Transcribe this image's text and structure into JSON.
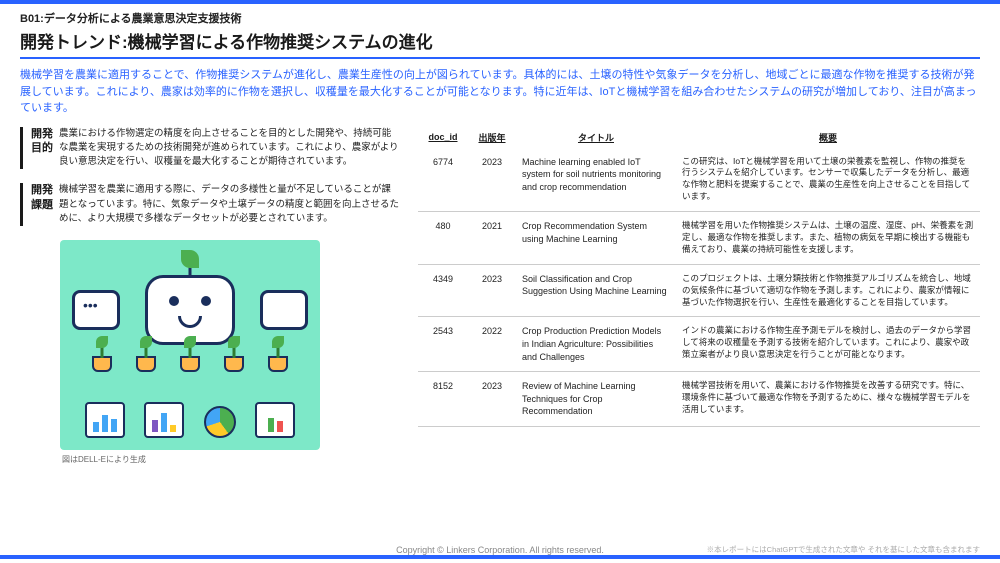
{
  "category": "B01:データ分析による農業意思決定支援技術",
  "title": "開発トレンド:機械学習による作物推奨システムの進化",
  "intro": "機械学習を農業に適用することで、作物推奨システムが進化し、農業生産性の向上が図られています。具体的には、土壌の特性や気象データを分析し、地域ごとに最適な作物を推奨する技術が発展しています。これにより、農家は効率的に作物を選択し、収穫量を最大化することが可能となります。特に近年は、IoTと機械学習を組み合わせたシステムの研究が増加しており、注目が高まっています。",
  "blocks": {
    "purpose_label": "開発\n目的",
    "purpose_text": "農業における作物選定の精度を向上させることを目的とした開発や、持続可能な農業を実現するための技術開発が進められています。これにより、農家がより良い意思決定を行い、収穫量を最大化することが期待されています。",
    "challenge_label": "開発\n課題",
    "challenge_text": "機械学習を農業に適用する際に、データの多様性と量が不足していることが課題となっています。特に、気象データや土壌データの精度と範囲を向上させるために、より大規模で多様なデータセットが必要とされています。"
  },
  "illustration_caption": "図はDELL-Eにより生成",
  "table": {
    "headers": {
      "id": "doc_id",
      "year": "出版年",
      "title": "タイトル",
      "summary": "概要"
    },
    "rows": [
      {
        "id": "6774",
        "year": "2023",
        "title": "Machine learning enabled IoT system for soil nutrients monitoring and crop recommendation",
        "summary": "この研究は、IoTと機械学習を用いて土壌の栄養素を監視し、作物の推奨を行うシステムを紹介しています。センサーで収集したデータを分析し、最適な作物と肥料を提案することで、農業の生産性を向上させることを目指しています。"
      },
      {
        "id": "480",
        "year": "2021",
        "title": "Crop Recommendation System using Machine Learning",
        "summary": "機械学習を用いた作物推奨システムは、土壌の温度、湿度、pH、栄養素を測定し、最適な作物を推奨します。また、植物の病気を早期に検出する機能も備えており、農業の持続可能性を支援します。"
      },
      {
        "id": "4349",
        "year": "2023",
        "title": "Soil Classification and Crop Suggestion Using Machine Learning",
        "summary": "このプロジェクトは、土壌分類技術と作物推奨アルゴリズムを統合し、地域の気候条件に基づいて適切な作物を予測します。これにより、農家が情報に基づいた作物選択を行い、生産性を最適化することを目指しています。"
      },
      {
        "id": "2543",
        "year": "2022",
        "title": "Crop Production Prediction Models in Indian Agriculture: Possibilities and Challenges",
        "summary": "インドの農業における作物生産予測モデルを検討し、過去のデータから学習して将来の収穫量を予測する技術を紹介しています。これにより、農家や政策立案者がより良い意思決定を行うことが可能となります。"
      },
      {
        "id": "8152",
        "year": "2023",
        "title": "Review of Machine Learning Techniques for Crop Recommendation",
        "summary": "機械学習技術を用いて、農業における作物推奨を改善する研究です。特に、環境条件に基づいて最適な作物を予測するために、様々な機械学習モデルを活用しています。"
      }
    ]
  },
  "copyright": "Copyright © Linkers Corporation. All rights reserved.",
  "disclaimer": "※本レポートにはChatGPTで生成された文章や それを基にした文章も含まれます",
  "colors": {
    "accent": "#2962ff",
    "text": "#1a1a1a",
    "muted": "#888"
  }
}
